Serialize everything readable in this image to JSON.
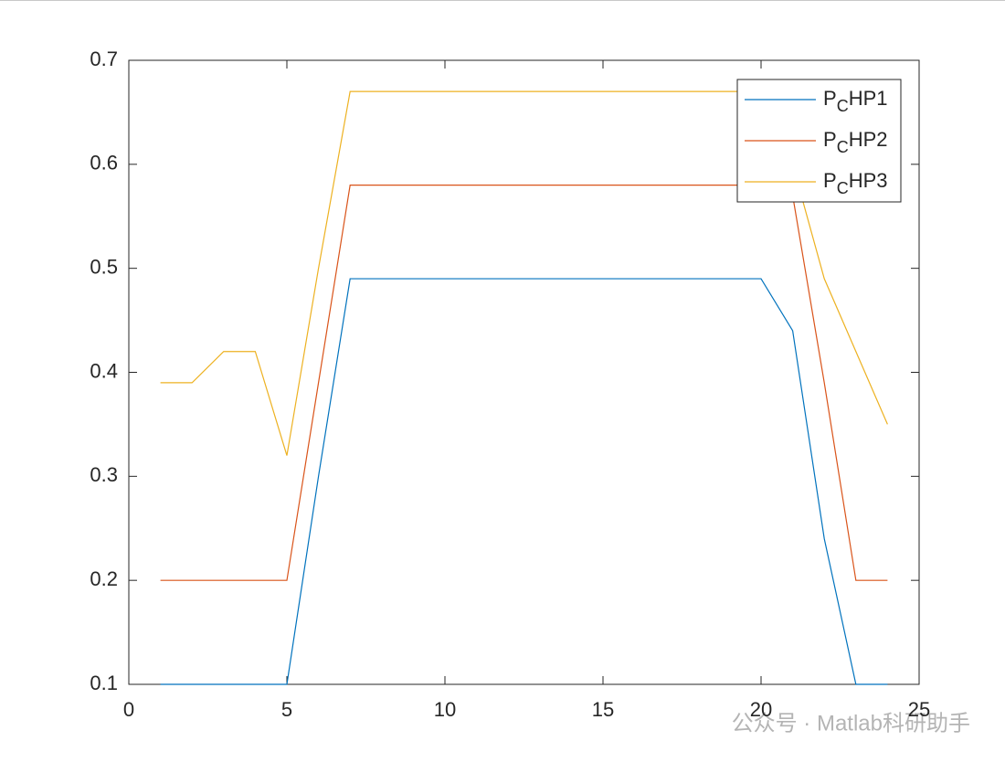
{
  "chart_data": {
    "type": "line",
    "x": [
      1,
      2,
      3,
      4,
      5,
      6,
      7,
      8,
      9,
      10,
      11,
      12,
      13,
      14,
      15,
      16,
      17,
      18,
      19,
      20,
      21,
      22,
      23,
      24
    ],
    "series": [
      {
        "name": "P_CHP1",
        "color": "#0072bd",
        "values": [
          0.1,
          0.1,
          0.1,
          0.1,
          0.1,
          0.3,
          0.49,
          0.49,
          0.49,
          0.49,
          0.49,
          0.49,
          0.49,
          0.49,
          0.49,
          0.49,
          0.49,
          0.49,
          0.49,
          0.49,
          0.44,
          0.24,
          0.1,
          0.1
        ]
      },
      {
        "name": "P_CHP2",
        "color": "#d95319",
        "values": [
          0.2,
          0.2,
          0.2,
          0.2,
          0.2,
          0.39,
          0.58,
          0.58,
          0.58,
          0.58,
          0.58,
          0.58,
          0.58,
          0.58,
          0.58,
          0.58,
          0.58,
          0.58,
          0.58,
          0.58,
          0.57,
          0.39,
          0.2,
          0.2
        ]
      },
      {
        "name": "P_CHP3",
        "color": "#edb120",
        "values": [
          0.39,
          0.39,
          0.42,
          0.42,
          0.32,
          0.5,
          0.67,
          0.67,
          0.67,
          0.67,
          0.67,
          0.67,
          0.67,
          0.67,
          0.67,
          0.67,
          0.67,
          0.67,
          0.67,
          0.67,
          0.6,
          0.49,
          0.42,
          0.35
        ]
      }
    ],
    "xlim": [
      0,
      25
    ],
    "xticks": [
      0,
      5,
      10,
      15,
      20,
      25
    ],
    "ylim": [
      0.1,
      0.7
    ],
    "yticks": [
      0.1,
      0.2,
      0.3,
      0.4,
      0.5,
      0.6,
      0.7
    ],
    "legend": "top-right",
    "watermark": "公众号 · Matlab科研助手"
  }
}
